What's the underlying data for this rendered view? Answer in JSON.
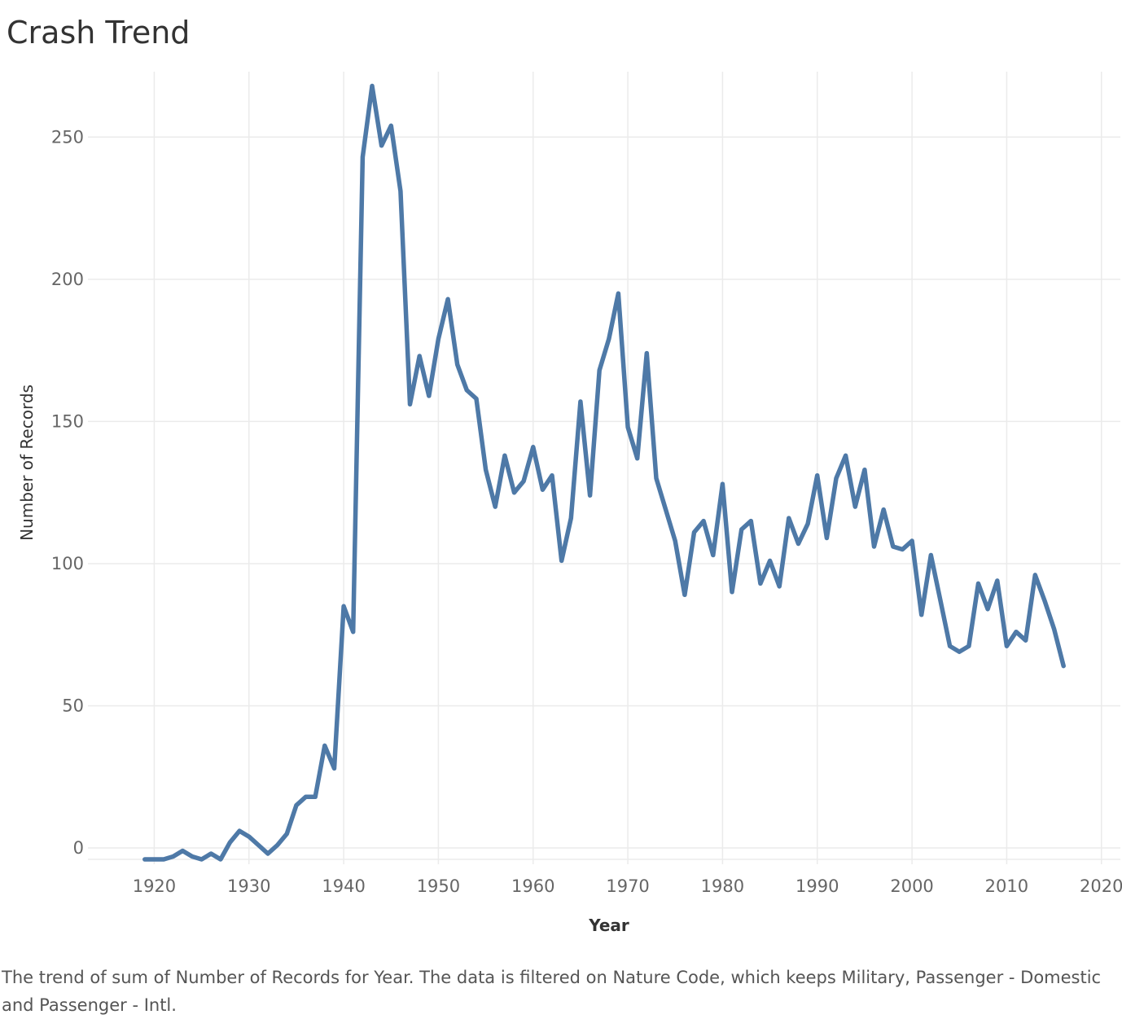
{
  "title": "Crash Trend",
  "caption": "The trend of sum of Number of Records for Year. The data is filtered on Nature Code, which keeps Military, Passenger - Domestic and Passenger - Intl.",
  "colors": {
    "line": "#4e79a7",
    "grid": "#ebebeb",
    "tick_text": "#666666",
    "title_text": "#333333"
  },
  "chart_data": {
    "type": "line",
    "title": "Crash Trend",
    "xlabel": "Year",
    "ylabel": "Number of Records",
    "xlim": [
      1913,
      2022
    ],
    "ylim": [
      -4,
      273
    ],
    "x_ticks": [
      1920,
      1930,
      1940,
      1950,
      1960,
      1970,
      1980,
      1990,
      2000,
      2010,
      2020
    ],
    "y_ticks": [
      0,
      50,
      100,
      150,
      200,
      250
    ],
    "grid": true,
    "series": [
      {
        "x": [
          1919,
          1920,
          1921,
          1922,
          1923,
          1924,
          1925,
          1926,
          1927,
          1928,
          1929,
          1930,
          1931,
          1932,
          1933,
          1934,
          1935,
          1936,
          1937,
          1938,
          1939,
          1940,
          1941,
          1942,
          1943,
          1944,
          1945,
          1946,
          1947,
          1948,
          1949,
          1950,
          1951,
          1952,
          1953,
          1954,
          1955,
          1956,
          1957,
          1958,
          1959,
          1960,
          1961,
          1962,
          1963,
          1964,
          1965,
          1966,
          1967,
          1968,
          1969,
          1970,
          1971,
          1972,
          1973,
          1974,
          1975,
          1976,
          1977,
          1978,
          1979,
          1980,
          1981,
          1982,
          1983,
          1984,
          1985,
          1986,
          1987,
          1988,
          1989,
          1990,
          1991,
          1992,
          1993,
          1994,
          1995,
          1996,
          1997,
          1998,
          1999,
          2000,
          2001,
          2002,
          2003,
          2004,
          2005,
          2006,
          2007,
          2008,
          2009,
          2010,
          2011,
          2012,
          2013,
          2014,
          2015,
          2016
        ],
        "values": [
          -4,
          -4,
          -4,
          -3,
          -1,
          -3,
          -4,
          -2,
          -4,
          2,
          6,
          4,
          1,
          -2,
          1,
          5,
          15,
          18,
          18,
          36,
          28,
          85,
          76,
          243,
          268,
          247,
          254,
          231,
          156,
          173,
          159,
          179,
          193,
          170,
          161,
          158,
          133,
          120,
          138,
          125,
          129,
          141,
          126,
          131,
          101,
          116,
          157,
          124,
          168,
          179,
          195,
          148,
          137,
          174,
          130,
          119,
          108,
          89,
          111,
          115,
          103,
          128,
          90,
          112,
          115,
          93,
          101,
          92,
          116,
          107,
          114,
          131,
          109,
          130,
          138,
          120,
          133,
          106,
          119,
          106,
          105,
          108,
          82,
          103,
          87,
          71,
          69,
          71,
          93,
          84,
          94,
          71,
          76,
          73,
          96,
          87,
          77,
          64
        ]
      }
    ]
  }
}
